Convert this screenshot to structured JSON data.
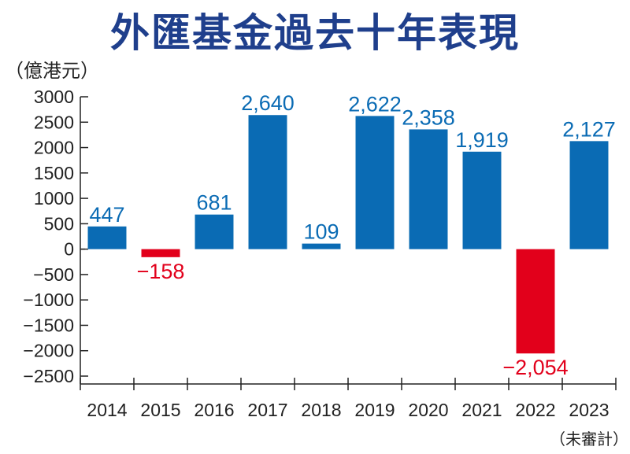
{
  "title": "外匯基金過去十年表現",
  "unit_label": "（億港元）",
  "x_note": "（未審計）",
  "colors": {
    "positive": "#0a6bb4",
    "negative": "#e2001b",
    "title": "#1f3f8c",
    "axis": "#222222"
  },
  "chart_data": {
    "type": "bar",
    "title": "外匯基金過去十年表現",
    "ylabel": "（億港元）",
    "xlabel": "",
    "categories": [
      "2014",
      "2015",
      "2016",
      "2017",
      "2018",
      "2019",
      "2020",
      "2021",
      "2022",
      "2023"
    ],
    "values": [
      447,
      -158,
      681,
      2640,
      109,
      2622,
      2358,
      1919,
      -2054,
      2127
    ],
    "data_labels": [
      "447",
      "−158",
      "681",
      "2,640",
      "109",
      "2,622",
      "2,358",
      "1,919",
      "−2,054",
      "2,127"
    ],
    "ylim": [
      -2500,
      3000
    ],
    "yticks": [
      3000,
      2500,
      2000,
      1500,
      1000,
      500,
      0,
      -500,
      -1000,
      -1500,
      -2000,
      -2500
    ],
    "ytick_labels": [
      "3000",
      "2500",
      "2000",
      "1500",
      "1000",
      "500",
      "0",
      "−500",
      "−1000",
      "−1500",
      "−2000",
      "−2500"
    ],
    "grid": false,
    "legend": "none"
  }
}
